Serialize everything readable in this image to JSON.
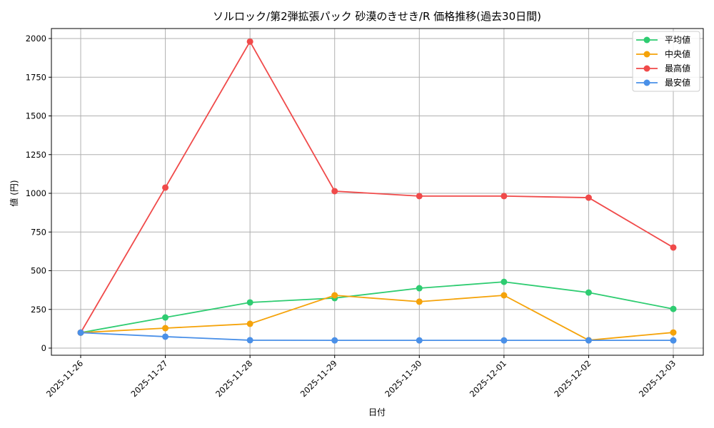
{
  "chart_data": {
    "type": "line",
    "title": "ソルロック/第2弾拡張パック 砂漠のきせき/R 価格推移(過去30日間)",
    "xlabel": "日付",
    "ylabel": "値 (円)",
    "ylim": [
      -50,
      2070
    ],
    "yticks": [
      0,
      250,
      500,
      750,
      1000,
      1250,
      1500,
      1750,
      2000
    ],
    "grid": true,
    "legend_position": "upper right",
    "categories": [
      "2025-11-26",
      "2025-11-27",
      "2025-11-28",
      "2025-11-29",
      "2025-11-30",
      "2025-12-01",
      "2025-12-02",
      "2025-12-03"
    ],
    "series": [
      {
        "name": "平均値",
        "color": "#2ecc71",
        "values": [
          100,
          198,
          295,
          323,
          387,
          428,
          359,
          253
        ]
      },
      {
        "name": "中央値",
        "color": "#f5a30a",
        "values": [
          100,
          129,
          157,
          341,
          300,
          341,
          51,
          101
        ]
      },
      {
        "name": "最高値",
        "color": "#f04a4a",
        "values": [
          100,
          1037,
          1980,
          1014,
          982,
          982,
          972,
          650
        ]
      },
      {
        "name": "最安値",
        "color": "#4a90e8",
        "values": [
          100,
          74,
          51,
          50,
          50,
          50,
          50,
          50
        ]
      }
    ]
  }
}
